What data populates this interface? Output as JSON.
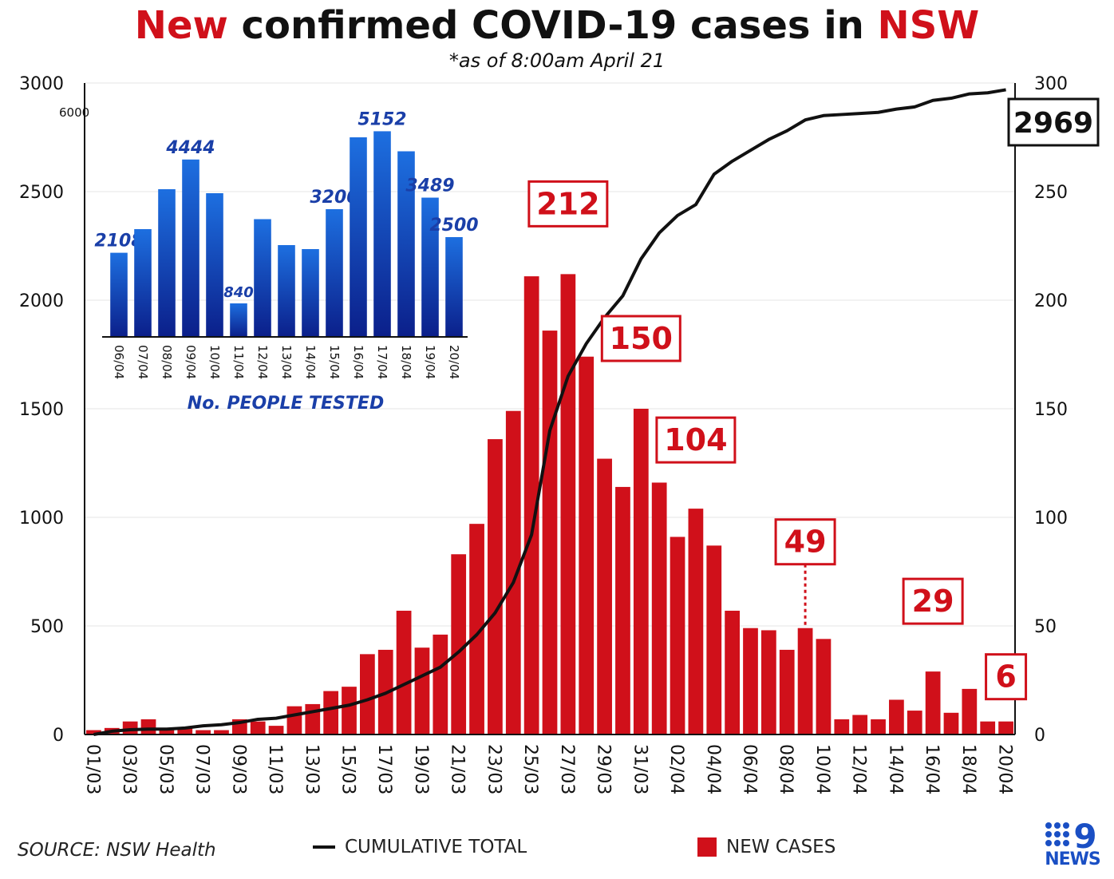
{
  "title": {
    "part1": "New",
    "part2": " confirmed COVID-19 cases in ",
    "part3": "NSW"
  },
  "subtitle": "*as of 8:00am April 21",
  "source": "SOURCE: NSW Health",
  "legend": {
    "cumulative": "CUMULATIVE TOTAL",
    "new_cases": "NEW CASES"
  },
  "logo": {
    "text": "NEWS",
    "icon": "nine-dots-icon"
  },
  "colors": {
    "red": "#d0101a",
    "blue": "#1a3fa8",
    "black": "#111111"
  },
  "chart_data": [
    {
      "type": "bar+line",
      "categories": [
        "01/03",
        "02/03",
        "03/03",
        "04/03",
        "05/03",
        "06/03",
        "07/03",
        "08/03",
        "09/03",
        "10/03",
        "11/03",
        "12/03",
        "13/03",
        "14/03",
        "15/03",
        "16/03",
        "17/03",
        "18/03",
        "19/03",
        "20/03",
        "21/03",
        "22/03",
        "23/03",
        "24/03",
        "25/03",
        "26/03",
        "27/03",
        "28/03",
        "29/03",
        "30/03",
        "31/03",
        "01/04",
        "02/04",
        "03/04",
        "04/04",
        "05/04",
        "06/04",
        "07/04",
        "08/04",
        "09/04",
        "10/04",
        "11/04",
        "12/04",
        "13/04",
        "14/04",
        "15/04",
        "16/04",
        "17/04",
        "18/04",
        "19/04",
        "20/04"
      ],
      "x_tick_labels": [
        "01/03",
        "03/03",
        "05/03",
        "07/03",
        "09/03",
        "11/03",
        "13/03",
        "15/03",
        "17/03",
        "19/03",
        "21/03",
        "23/03",
        "25/03",
        "27/03",
        "29/03",
        "31/03",
        "02/04",
        "04/04",
        "06/04",
        "08/04",
        "10/04",
        "12/04",
        "14/04",
        "16/04",
        "18/04",
        "20/04"
      ],
      "series": [
        {
          "name": "NEW CASES",
          "axis": "right",
          "values": [
            2,
            3,
            6,
            7,
            2,
            3,
            2,
            2,
            7,
            6,
            4,
            13,
            14,
            20,
            22,
            37,
            39,
            57,
            40,
            46,
            83,
            97,
            136,
            149,
            211,
            186,
            212,
            174,
            127,
            114,
            150,
            116,
            91,
            104,
            87,
            57,
            49,
            48,
            39,
            49,
            44,
            7,
            9,
            7,
            16,
            11,
            29,
            10,
            21,
            6,
            6
          ]
        },
        {
          "name": "CUMULATIVE TOTAL",
          "axis": "left",
          "values": [
            0,
            15,
            22,
            25,
            25,
            30,
            40,
            45,
            55,
            70,
            75,
            90,
            105,
            120,
            135,
            160,
            190,
            230,
            270,
            310,
            380,
            460,
            560,
            700,
            920,
            1400,
            1650,
            1800,
            1920,
            2020,
            2190,
            2310,
            2390,
            2440,
            2580,
            2640,
            2690,
            2740,
            2780,
            2830,
            2850,
            2855,
            2860,
            2865,
            2880,
            2890,
            2920,
            2930,
            2950,
            2955,
            2969
          ]
        }
      ],
      "y_left": {
        "min": 0,
        "max": 3000,
        "ticks": [
          "0",
          "500",
          "1000",
          "1500",
          "2000",
          "2500",
          "3000"
        ]
      },
      "y_right": {
        "min": 0,
        "max": 300,
        "ticks": [
          "0",
          "50",
          "100",
          "150",
          "200",
          "250",
          "300"
        ]
      },
      "callouts": [
        {
          "label": "212",
          "category": "27/03"
        },
        {
          "label": "150",
          "category": "31/03"
        },
        {
          "label": "104",
          "category": "03/04"
        },
        {
          "label": "49",
          "category": "09/04"
        },
        {
          "label": "29",
          "category": "16/04"
        },
        {
          "label": "6",
          "category": "20/04"
        }
      ],
      "total_label": "2969",
      "grid": true
    },
    {
      "type": "bar",
      "title": "No. PEOPLE TESTED",
      "stray_label": "6000",
      "categories": [
        "06/04",
        "07/04",
        "08/04",
        "09/04",
        "10/04",
        "11/04",
        "12/04",
        "13/04",
        "14/04",
        "15/04",
        "16/04",
        "17/04",
        "18/04",
        "19/04",
        "20/04"
      ],
      "values": [
        2108,
        2700,
        3700,
        4444,
        3600,
        840,
        2950,
        2300,
        2200,
        3200,
        5000,
        5152,
        4650,
        3489,
        2500
      ],
      "value_labels": {
        "06/04": "2108",
        "09/04": "4444",
        "11/04": "840",
        "15/04": "3200",
        "17/04": "5152",
        "19/04": "3489",
        "20/04": "2500"
      },
      "ylim": [
        0,
        6000
      ]
    }
  ]
}
